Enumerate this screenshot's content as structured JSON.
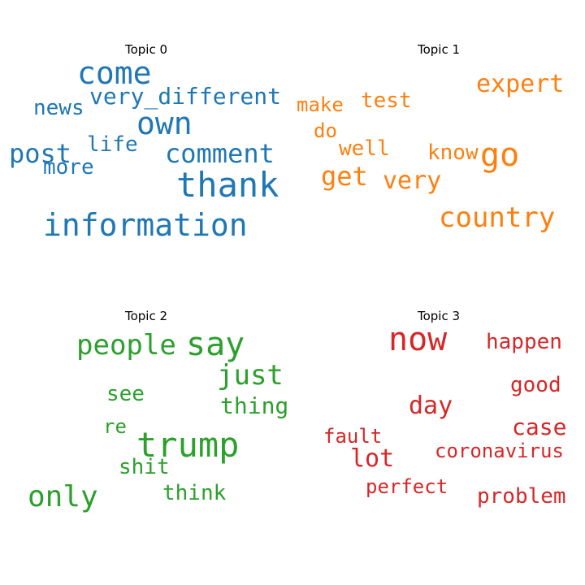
{
  "chart_data": [
    {
      "type": "wordcloud",
      "title": "Topic 0",
      "color": "#1f77b4",
      "words": [
        {
          "text": "come"
        },
        {
          "text": "very_different"
        },
        {
          "text": "news"
        },
        {
          "text": "own"
        },
        {
          "text": "life"
        },
        {
          "text": "post"
        },
        {
          "text": "comment"
        },
        {
          "text": "more"
        },
        {
          "text": "thank"
        },
        {
          "text": "information"
        }
      ]
    },
    {
      "type": "wordcloud",
      "title": "Topic 1",
      "color": "#ff7f0e",
      "words": [
        {
          "text": "expert"
        },
        {
          "text": "test"
        },
        {
          "text": "make"
        },
        {
          "text": "do"
        },
        {
          "text": "well"
        },
        {
          "text": "know"
        },
        {
          "text": "go"
        },
        {
          "text": "get"
        },
        {
          "text": "very"
        },
        {
          "text": "country"
        }
      ]
    },
    {
      "type": "wordcloud",
      "title": "Topic 2",
      "color": "#2ca02c",
      "words": [
        {
          "text": "people"
        },
        {
          "text": "say"
        },
        {
          "text": "just"
        },
        {
          "text": "see"
        },
        {
          "text": "thing"
        },
        {
          "text": "re"
        },
        {
          "text": "trump"
        },
        {
          "text": "shit"
        },
        {
          "text": "only"
        },
        {
          "text": "think"
        }
      ]
    },
    {
      "type": "wordcloud",
      "title": "Topic 3",
      "color": "#d62728",
      "words": [
        {
          "text": "now"
        },
        {
          "text": "happen"
        },
        {
          "text": "good"
        },
        {
          "text": "day"
        },
        {
          "text": "case"
        },
        {
          "text": "fault"
        },
        {
          "text": "coronavirus"
        },
        {
          "text": "lot"
        },
        {
          "text": "perfect"
        },
        {
          "text": "problem"
        }
      ]
    }
  ]
}
